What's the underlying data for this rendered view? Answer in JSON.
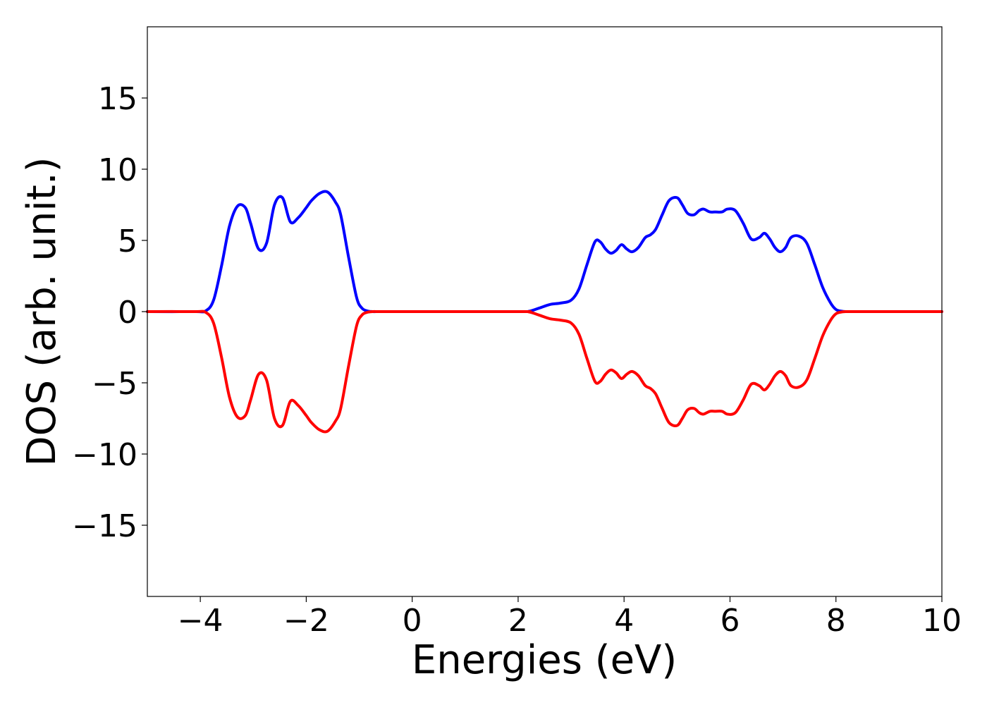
{
  "chart_data": {
    "type": "line",
    "title": "",
    "xlabel": "Energies (eV)",
    "ylabel": "DOS (arb. unit.)",
    "xlim": [
      -5,
      10
    ],
    "ylim": [
      -20,
      20
    ],
    "xticks": [
      -4,
      -2,
      0,
      2,
      4,
      6,
      8,
      10
    ],
    "xtick_labels": [
      "−4",
      "−2",
      "0",
      "2",
      "4",
      "6",
      "8",
      "10"
    ],
    "yticks": [
      -15,
      -10,
      -5,
      0,
      5,
      10,
      15
    ],
    "ytick_labels": [
      "−15",
      "−10",
      "−5",
      "0",
      "5",
      "10",
      "15"
    ],
    "grid": false,
    "legend": false,
    "series": [
      {
        "color": "#0000ff",
        "x": [
          -5,
          -4.1,
          -3.9,
          -3.75,
          -3.6,
          -3.45,
          -3.3,
          -3.15,
          -3.05,
          -2.9,
          -2.75,
          -2.6,
          -2.45,
          -2.3,
          -2.15,
          -2.0,
          -1.9,
          -1.75,
          -1.6,
          -1.45,
          -1.35,
          -1.2,
          -1.05,
          -0.95,
          -0.85,
          -0.75,
          -0.65,
          -0.55,
          -0.3,
          2.0,
          2.2,
          2.4,
          2.6,
          2.8,
          3.0,
          3.15,
          3.3,
          3.45,
          3.55,
          3.65,
          3.75,
          3.85,
          3.95,
          4.05,
          4.15,
          4.27,
          4.4,
          4.5,
          4.6,
          4.72,
          4.85,
          5.0,
          5.1,
          5.2,
          5.32,
          5.42,
          5.5,
          5.62,
          5.72,
          5.85,
          5.95,
          6.1,
          6.25,
          6.4,
          6.55,
          6.65,
          6.75,
          6.85,
          6.95,
          7.05,
          7.15,
          7.3,
          7.45,
          7.6,
          7.75,
          7.9,
          8.0,
          8.1,
          8.2,
          8.3,
          8.45,
          8.6,
          8.8,
          10
        ],
        "y": [
          0,
          0,
          0.05,
          0.8,
          3.2,
          6.0,
          7.4,
          7.3,
          6.2,
          4.4,
          4.8,
          7.5,
          8.0,
          6.3,
          6.6,
          7.3,
          7.8,
          8.3,
          8.4,
          7.7,
          6.8,
          3.8,
          1.0,
          0.25,
          0.05,
          0,
          0,
          0,
          0,
          0,
          0.02,
          0.25,
          0.5,
          0.6,
          0.8,
          1.6,
          3.3,
          4.9,
          4.9,
          4.4,
          4.1,
          4.3,
          4.7,
          4.4,
          4.2,
          4.5,
          5.2,
          5.4,
          5.8,
          6.8,
          7.8,
          8.0,
          7.5,
          6.9,
          6.8,
          7.1,
          7.2,
          7.0,
          7.0,
          7.0,
          7.2,
          7.1,
          6.2,
          5.1,
          5.2,
          5.5,
          5.1,
          4.5,
          4.2,
          4.5,
          5.2,
          5.3,
          4.8,
          3.3,
          1.7,
          0.6,
          0.15,
          0.03,
          0,
          0,
          0,
          0,
          0,
          0
        ]
      },
      {
        "color": "#ff0000",
        "x": [
          -5,
          -4.1,
          -3.9,
          -3.75,
          -3.6,
          -3.45,
          -3.3,
          -3.15,
          -3.05,
          -2.9,
          -2.75,
          -2.6,
          -2.45,
          -2.3,
          -2.15,
          -2.0,
          -1.9,
          -1.75,
          -1.6,
          -1.45,
          -1.35,
          -1.2,
          -1.05,
          -0.95,
          -0.85,
          -0.75,
          -0.65,
          -0.55,
          -0.3,
          2.0,
          2.2,
          2.4,
          2.6,
          2.8,
          3.0,
          3.15,
          3.3,
          3.45,
          3.55,
          3.65,
          3.75,
          3.85,
          3.95,
          4.05,
          4.15,
          4.27,
          4.4,
          4.5,
          4.6,
          4.72,
          4.85,
          5.0,
          5.1,
          5.2,
          5.32,
          5.42,
          5.5,
          5.62,
          5.72,
          5.85,
          5.95,
          6.1,
          6.25,
          6.4,
          6.55,
          6.65,
          6.75,
          6.85,
          6.95,
          7.05,
          7.15,
          7.3,
          7.45,
          7.6,
          7.75,
          7.9,
          8.0,
          8.1,
          8.2,
          8.3,
          8.45,
          8.6,
          8.8,
          10
        ],
        "y": [
          0,
          0,
          -0.05,
          -0.8,
          -3.2,
          -6.0,
          -7.4,
          -7.3,
          -6.2,
          -4.4,
          -4.8,
          -7.5,
          -8.0,
          -6.3,
          -6.6,
          -7.3,
          -7.8,
          -8.3,
          -8.4,
          -7.7,
          -6.8,
          -3.8,
          -1.0,
          -0.25,
          -0.05,
          0,
          0,
          0,
          0,
          0,
          -0.02,
          -0.25,
          -0.5,
          -0.6,
          -0.8,
          -1.6,
          -3.3,
          -4.9,
          -4.9,
          -4.4,
          -4.1,
          -4.3,
          -4.7,
          -4.4,
          -4.2,
          -4.5,
          -5.2,
          -5.4,
          -5.8,
          -6.8,
          -7.8,
          -8.0,
          -7.5,
          -6.9,
          -6.8,
          -7.1,
          -7.2,
          -7.0,
          -7.0,
          -7.0,
          -7.2,
          -7.1,
          -6.2,
          -5.1,
          -5.2,
          -5.5,
          -5.1,
          -4.5,
          -4.2,
          -4.5,
          -5.2,
          -5.3,
          -4.8,
          -3.3,
          -1.7,
          -0.6,
          -0.15,
          -0.03,
          0,
          0,
          0,
          0,
          0,
          0
        ]
      }
    ]
  }
}
